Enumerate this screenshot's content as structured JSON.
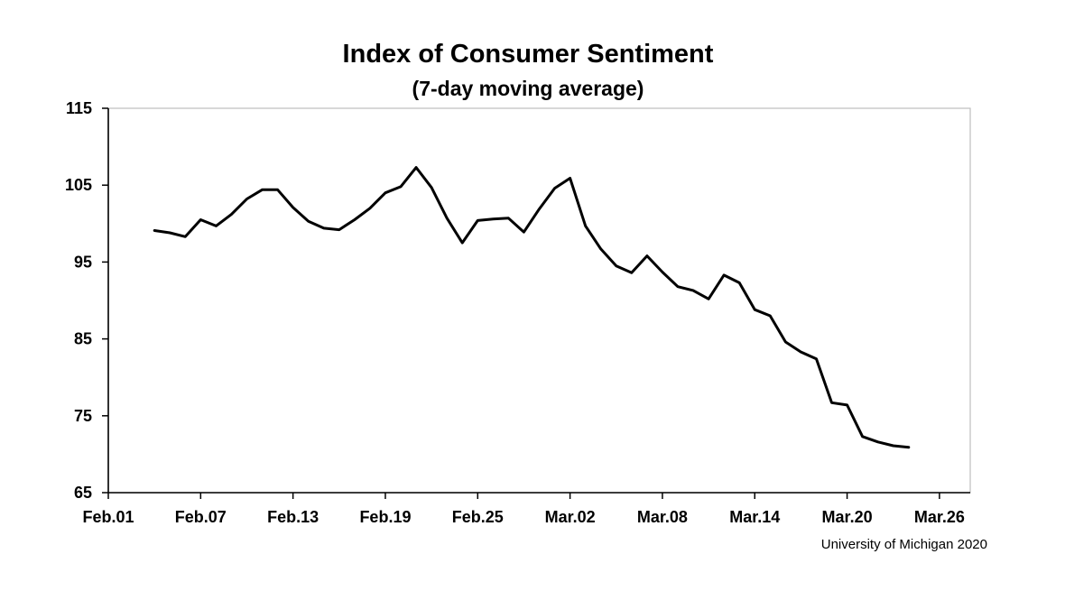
{
  "chart_data": {
    "type": "line",
    "title": "Index of Consumer Sentiment",
    "subtitle": "(7-day moving average)",
    "xlabel": "",
    "ylabel": "",
    "ylim": [
      65,
      115
    ],
    "yticks": [
      65,
      75,
      85,
      95,
      105,
      115
    ],
    "xlim": [
      "2020-02-01",
      "2020-03-28"
    ],
    "xticks": [
      {
        "date": "2020-02-01",
        "label": "Feb.01"
      },
      {
        "date": "2020-02-07",
        "label": "Feb.07"
      },
      {
        "date": "2020-02-13",
        "label": "Feb.13"
      },
      {
        "date": "2020-02-19",
        "label": "Feb.19"
      },
      {
        "date": "2020-02-25",
        "label": "Feb.25"
      },
      {
        "date": "2020-03-02",
        "label": "Mar.02"
      },
      {
        "date": "2020-03-08",
        "label": "Mar.08"
      },
      {
        "date": "2020-03-14",
        "label": "Mar.14"
      },
      {
        "date": "2020-03-20",
        "label": "Mar.20"
      },
      {
        "date": "2020-03-26",
        "label": "Mar.26"
      }
    ],
    "grid": false,
    "line_color": "#000000",
    "series": [
      {
        "x": [
          "2020-02-04",
          "2020-02-05",
          "2020-02-06",
          "2020-02-07",
          "2020-02-08",
          "2020-02-09",
          "2020-02-10",
          "2020-02-11",
          "2020-02-12",
          "2020-02-13",
          "2020-02-14",
          "2020-02-15",
          "2020-02-16",
          "2020-02-17",
          "2020-02-18",
          "2020-02-19",
          "2020-02-20",
          "2020-02-21",
          "2020-02-22",
          "2020-02-23",
          "2020-02-24",
          "2020-02-25",
          "2020-02-26",
          "2020-02-27",
          "2020-02-28",
          "2020-02-29",
          "2020-03-01",
          "2020-03-02",
          "2020-03-03",
          "2020-03-04",
          "2020-03-05",
          "2020-03-06",
          "2020-03-07",
          "2020-03-08",
          "2020-03-09",
          "2020-03-10",
          "2020-03-11",
          "2020-03-12",
          "2020-03-13",
          "2020-03-14",
          "2020-03-15",
          "2020-03-16",
          "2020-03-17",
          "2020-03-18",
          "2020-03-19",
          "2020-03-20",
          "2020-03-21",
          "2020-03-22",
          "2020-03-23",
          "2020-03-24"
        ],
        "y": [
          99.1,
          98.8,
          98.3,
          100.5,
          99.7,
          101.2,
          103.2,
          104.4,
          104.4,
          102.1,
          100.3,
          99.4,
          99.2,
          100.5,
          102.0,
          104.0,
          104.8,
          107.3,
          104.7,
          100.7,
          97.5,
          100.4,
          100.6,
          100.7,
          98.9,
          101.9,
          104.6,
          105.9,
          99.7,
          96.7,
          94.5,
          93.6,
          95.8,
          93.7,
          91.8,
          91.3,
          90.2,
          93.3,
          92.3,
          88.8,
          88.0,
          84.6,
          83.3,
          82.4,
          76.7,
          76.4,
          72.3,
          71.6,
          71.1,
          70.9
        ]
      }
    ]
  },
  "source_note": "University of Michigan 2020"
}
